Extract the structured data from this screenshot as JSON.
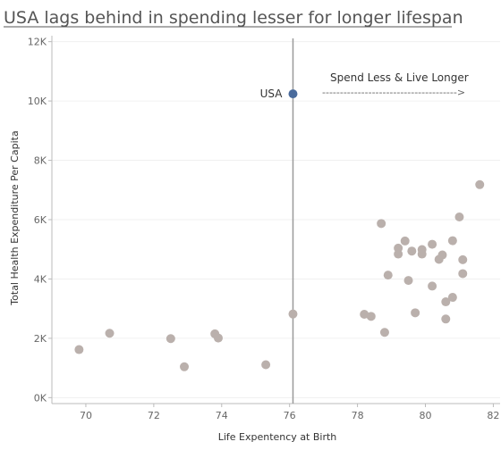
{
  "chart_data": {
    "type": "scatter",
    "title": "USA lags behind in spending lesser for longer lifespan",
    "xlabel": "Life Expentency at Birth",
    "ylabel": "Total Health Expenditure Per Capita",
    "xlim": [
      69,
      82.2
    ],
    "ylim": [
      -200,
      12200
    ],
    "x_ticks": [
      70,
      72,
      74,
      76,
      78,
      80,
      82
    ],
    "y_ticks": [
      0,
      2000,
      4000,
      6000,
      8000,
      10000,
      12000
    ],
    "y_tick_labels": [
      "0K",
      "2K",
      "4K",
      "6K",
      "8K",
      "10K",
      "12K"
    ],
    "reference_line_x": 76.1,
    "highlight": {
      "label": "USA",
      "x": 76.1,
      "y": 10240,
      "color": "#4a6b9c"
    },
    "annotation": {
      "text": "Spend Less & Live Longer",
      "arrow_text": "-------------------------------------->"
    },
    "point_color": "#bab0ac",
    "points": [
      {
        "x": 69.8,
        "y": 1620
      },
      {
        "x": 70.7,
        "y": 2170
      },
      {
        "x": 72.5,
        "y": 1990
      },
      {
        "x": 72.9,
        "y": 1040
      },
      {
        "x": 73.8,
        "y": 2150
      },
      {
        "x": 73.9,
        "y": 2010
      },
      {
        "x": 75.3,
        "y": 1110
      },
      {
        "x": 76.1,
        "y": 2820
      },
      {
        "x": 78.2,
        "y": 2810
      },
      {
        "x": 78.4,
        "y": 2740
      },
      {
        "x": 78.8,
        "y": 2200
      },
      {
        "x": 78.7,
        "y": 5870
      },
      {
        "x": 78.9,
        "y": 4130
      },
      {
        "x": 79.2,
        "y": 4840
      },
      {
        "x": 79.2,
        "y": 5040
      },
      {
        "x": 79.4,
        "y": 5280
      },
      {
        "x": 79.5,
        "y": 3950
      },
      {
        "x": 79.6,
        "y": 4940
      },
      {
        "x": 79.7,
        "y": 2860
      },
      {
        "x": 79.9,
        "y": 4840
      },
      {
        "x": 79.9,
        "y": 4990
      },
      {
        "x": 80.2,
        "y": 5170
      },
      {
        "x": 80.2,
        "y": 3760
      },
      {
        "x": 80.4,
        "y": 4660
      },
      {
        "x": 80.5,
        "y": 4810
      },
      {
        "x": 80.6,
        "y": 3230
      },
      {
        "x": 80.6,
        "y": 2650
      },
      {
        "x": 80.8,
        "y": 5290
      },
      {
        "x": 80.8,
        "y": 3380
      },
      {
        "x": 81.0,
        "y": 6090
      },
      {
        "x": 81.1,
        "y": 4650
      },
      {
        "x": 81.1,
        "y": 4180
      },
      {
        "x": 81.6,
        "y": 7180
      }
    ]
  }
}
